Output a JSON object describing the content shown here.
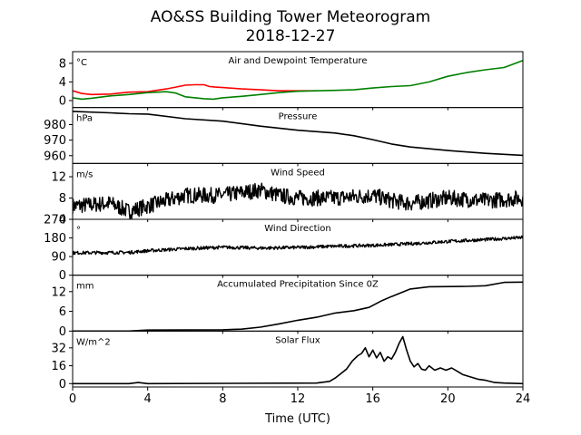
{
  "title": "AO&SS Building Tower Meteorogram",
  "subtitle": "2018-12-27",
  "chart_data": {
    "type": "line",
    "xlabel": "Time (UTC)",
    "xlim": [
      0,
      24
    ],
    "xticks": [
      0,
      4,
      8,
      12,
      16,
      20,
      24
    ],
    "panels": [
      {
        "title": "Air and Dewpoint Temperature",
        "unit": "°C",
        "ylim": [
          -1.5,
          10.5
        ],
        "yticks": [
          0,
          4,
          8
        ],
        "series": [
          {
            "color": "#ff0000",
            "points": [
              [
                0,
                2.1
              ],
              [
                0.5,
                1.5
              ],
              [
                1,
                1.3
              ],
              [
                2,
                1.4
              ],
              [
                3,
                1.8
              ],
              [
                4,
                1.9
              ],
              [
                5,
                2.5
              ],
              [
                5.5,
                2.9
              ],
              [
                6,
                3.3
              ],
              [
                6.5,
                3.4
              ],
              [
                7,
                3.4
              ],
              [
                7.3,
                3.0
              ],
              [
                7.6,
                2.9
              ],
              [
                8,
                2.8
              ],
              [
                9,
                2.5
              ],
              [
                10,
                2.3
              ],
              [
                11,
                2.1
              ],
              [
                12,
                2.1
              ],
              [
                13,
                2.1
              ]
            ]
          },
          {
            "color": "#008000",
            "points": [
              [
                0,
                0.6
              ],
              [
                0.5,
                0.3
              ],
              [
                1,
                0.5
              ],
              [
                2,
                1.0
              ],
              [
                3,
                1.3
              ],
              [
                4,
                1.7
              ],
              [
                5,
                1.9
              ],
              [
                5.5,
                1.6
              ],
              [
                6,
                0.8
              ],
              [
                7,
                0.4
              ],
              [
                7.5,
                0.3
              ],
              [
                8,
                0.6
              ],
              [
                9,
                0.9
              ],
              [
                10,
                1.3
              ],
              [
                11,
                1.7
              ],
              [
                12,
                2.0
              ],
              [
                13,
                2.1
              ],
              [
                14,
                2.2
              ],
              [
                15,
                2.3
              ],
              [
                16,
                2.7
              ],
              [
                17,
                3.0
              ],
              [
                18,
                3.2
              ],
              [
                19,
                4.0
              ],
              [
                20,
                5.2
              ],
              [
                21,
                6.0
              ],
              [
                22,
                6.6
              ],
              [
                23,
                7.1
              ],
              [
                24,
                8.6
              ]
            ]
          }
        ]
      },
      {
        "title": "Pressure",
        "unit": "hPa",
        "ylim": [
          955,
          991
        ],
        "yticks": [
          960,
          970,
          980
        ],
        "series": [
          {
            "color": "#000000",
            "points": [
              [
                0,
                988.5
              ],
              [
                2,
                987.6
              ],
              [
                3,
                987.0
              ],
              [
                4,
                986.8
              ],
              [
                6,
                983.8
              ],
              [
                8,
                982.2
              ],
              [
                10,
                979.0
              ],
              [
                12,
                976.4
              ],
              [
                14,
                974.6
              ],
              [
                15,
                972.8
              ],
              [
                16,
                970.3
              ],
              [
                17,
                967.5
              ],
              [
                18,
                965.6
              ],
              [
                20,
                963.3
              ],
              [
                22,
                961.5
              ],
              [
                24,
                960.2
              ]
            ]
          }
        ]
      },
      {
        "title": "Wind Speed",
        "unit": "m/s",
        "ylim": [
          4,
          14.5
        ],
        "yticks": [
          4,
          8,
          12
        ],
        "series": [
          {
            "color": "#000000",
            "noise": 1.5,
            "points": [
              [
                0,
                6.5
              ],
              [
                2,
                7.0
              ],
              [
                3,
                5.5
              ],
              [
                4,
                6.5
              ],
              [
                6,
                8.5
              ],
              [
                8,
                8.5
              ],
              [
                10,
                9.5
              ],
              [
                11,
                8.5
              ],
              [
                12,
                8.0
              ],
              [
                14,
                8.0
              ],
              [
                16,
                8.5
              ],
              [
                17,
                7.5
              ],
              [
                18,
                7.0
              ],
              [
                20,
                8.0
              ],
              [
                22,
                7.5
              ],
              [
                24,
                8.0
              ]
            ]
          }
        ]
      },
      {
        "title": "Wind Direction",
        "unit": "°",
        "ylim": [
          0,
          270
        ],
        "yticks": [
          0,
          90,
          180,
          270
        ],
        "series": [
          {
            "color": "#000000",
            "noise": 8,
            "points": [
              [
                0,
                108
              ],
              [
                3,
                110
              ],
              [
                4,
                118
              ],
              [
                6,
                128
              ],
              [
                8,
                135
              ],
              [
                10,
                131
              ],
              [
                12,
                134
              ],
              [
                14,
                140
              ],
              [
                16,
                144
              ],
              [
                18,
                152
              ],
              [
                20,
                163
              ],
              [
                22,
                172
              ],
              [
                24,
                182
              ]
            ]
          }
        ]
      },
      {
        "title": "Accumulated Precipitation Since 0Z",
        "unit": "mm",
        "ylim": [
          0,
          17
        ],
        "yticks": [
          0,
          6,
          12
        ],
        "series": [
          {
            "color": "#000000",
            "points": [
              [
                0,
                0
              ],
              [
                3,
                0
              ],
              [
                4,
                0.3
              ],
              [
                8,
                0.4
              ],
              [
                9,
                0.6
              ],
              [
                10,
                1.2
              ],
              [
                11,
                2.2
              ],
              [
                12,
                3.3
              ],
              [
                13,
                4.2
              ],
              [
                14,
                5.5
              ],
              [
                15,
                6.2
              ],
              [
                15.8,
                7.2
              ],
              [
                16.5,
                9.3
              ],
              [
                17,
                10.5
              ],
              [
                18,
                12.8
              ],
              [
                19,
                13.5
              ],
              [
                21,
                13.6
              ],
              [
                22,
                13.8
              ],
              [
                23,
                14.8
              ],
              [
                24,
                14.9
              ]
            ]
          }
        ]
      },
      {
        "title": "Solar Flux",
        "unit": "W/m^2",
        "ylim": [
          -3,
          47
        ],
        "yticks": [
          0,
          16,
          32
        ],
        "series": [
          {
            "color": "#000000",
            "points": [
              [
                0,
                0
              ],
              [
                3,
                0
              ],
              [
                3.5,
                1
              ],
              [
                4,
                0
              ],
              [
                13,
                0.5
              ],
              [
                13.7,
                2
              ],
              [
                14,
                5
              ],
              [
                14.3,
                9
              ],
              [
                14.6,
                13
              ],
              [
                14.9,
                20
              ],
              [
                15.2,
                25
              ],
              [
                15.4,
                27
              ],
              [
                15.6,
                32
              ],
              [
                15.8,
                24
              ],
              [
                16.0,
                30
              ],
              [
                16.2,
                23
              ],
              [
                16.4,
                28
              ],
              [
                16.6,
                20
              ],
              [
                16.8,
                24
              ],
              [
                17.0,
                22
              ],
              [
                17.2,
                28
              ],
              [
                17.4,
                36
              ],
              [
                17.6,
                42
              ],
              [
                17.8,
                30
              ],
              [
                18.0,
                20
              ],
              [
                18.2,
                15
              ],
              [
                18.4,
                18
              ],
              [
                18.6,
                13
              ],
              [
                18.8,
                12
              ],
              [
                19.0,
                16
              ],
              [
                19.3,
                12
              ],
              [
                19.6,
                14
              ],
              [
                19.9,
                12
              ],
              [
                20.2,
                14
              ],
              [
                20.5,
                11
              ],
              [
                20.8,
                8
              ],
              [
                21.2,
                6
              ],
              [
                21.6,
                4
              ],
              [
                22.0,
                3
              ],
              [
                22.5,
                1
              ],
              [
                23,
                0.5
              ],
              [
                24,
                0
              ]
            ]
          }
        ]
      }
    ]
  }
}
